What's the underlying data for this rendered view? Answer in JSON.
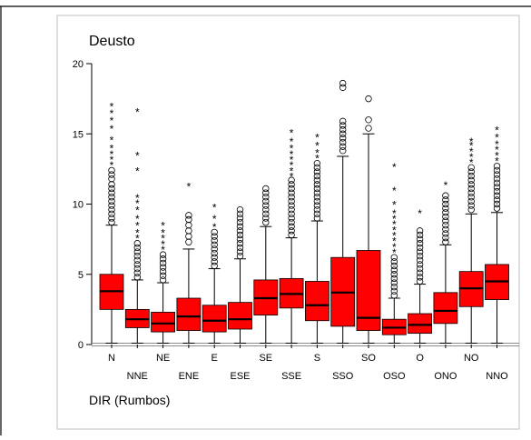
{
  "chart_data": {
    "type": "box",
    "title": "Deusto",
    "xlabel": "DIR (Rumbos)",
    "ylabel": "",
    "ylim": [
      0,
      20
    ],
    "yticks": [
      0,
      5,
      10,
      15,
      20
    ],
    "grid": false,
    "box_color": "#ff0000",
    "categories": [
      "N",
      "NNE",
      "NE",
      "ENE",
      "E",
      "ESE",
      "SE",
      "SSE",
      "S",
      "SSO",
      "SO",
      "OSO",
      "O",
      "ONO",
      "NO",
      "NNO"
    ],
    "boxes": [
      {
        "category": "N",
        "min": 0.1,
        "q1": 2.5,
        "median": 3.8,
        "q3": 5.0,
        "max": 8.5,
        "circles": [
          8.7,
          9.0,
          9.3,
          9.6,
          9.9,
          10.2,
          10.5,
          10.8,
          11.1,
          11.4,
          11.8,
          12.1,
          12.4
        ],
        "stars": [
          12.8,
          13.2,
          13.6,
          14.0,
          14.6,
          15.4,
          16.0,
          16.5,
          17.0
        ]
      },
      {
        "category": "NNE",
        "min": 0.1,
        "q1": 1.2,
        "median": 1.8,
        "q3": 2.5,
        "max": 4.6,
        "circles": [
          4.8,
          5.1,
          5.4,
          5.7,
          6.0,
          6.3,
          6.6,
          6.9,
          7.2
        ],
        "stars": [
          7.6,
          8.0,
          8.5,
          9.0,
          9.6,
          10.1,
          10.5,
          12.4,
          13.5,
          16.6
        ]
      },
      {
        "category": "NE",
        "min": 0.1,
        "q1": 0.9,
        "median": 1.5,
        "q3": 2.3,
        "max": 4.4,
        "circles": [
          4.6,
          4.9,
          5.2,
          5.5,
          5.8,
          6.1,
          6.4
        ],
        "stars": [
          6.8,
          7.2,
          7.6,
          8.0,
          8.5
        ]
      },
      {
        "category": "ENE",
        "min": 0.1,
        "q1": 1.0,
        "median": 2.0,
        "q3": 3.3,
        "max": 6.8,
        "circles": [
          7.3,
          7.7,
          8.1,
          8.5,
          8.9,
          9.2
        ],
        "stars": [
          11.3
        ]
      },
      {
        "category": "E",
        "min": 0.1,
        "q1": 0.9,
        "median": 1.7,
        "q3": 2.8,
        "max": 5.4,
        "circles": [
          5.6,
          5.9,
          6.2,
          6.5,
          6.8,
          7.1,
          7.4,
          7.7,
          8.0
        ],
        "stars": [
          8.4,
          9.0,
          9.8
        ]
      },
      {
        "category": "ESE",
        "min": 0.1,
        "q1": 1.1,
        "median": 1.8,
        "q3": 3.0,
        "max": 6.1,
        "circles": [
          6.3,
          6.6,
          6.9,
          7.2,
          7.5,
          7.8,
          8.1,
          8.4,
          8.7,
          9.0,
          9.3,
          9.6
        ],
        "stars": []
      },
      {
        "category": "SE",
        "min": 0.1,
        "q1": 2.1,
        "median": 3.3,
        "q3": 4.6,
        "max": 8.4,
        "circles": [
          8.7,
          9.0,
          9.3,
          9.6,
          9.9,
          10.2,
          10.5,
          10.8,
          11.1
        ],
        "stars": []
      },
      {
        "category": "SSE",
        "min": 0.1,
        "q1": 2.6,
        "median": 3.6,
        "q3": 4.7,
        "max": 7.6,
        "circles": [
          7.8,
          8.1,
          8.4,
          8.7,
          9.0,
          9.3,
          9.6,
          9.9,
          10.2,
          10.5,
          10.8,
          11.1,
          11.4,
          11.7
        ],
        "stars": [
          12.0,
          12.4,
          12.8,
          13.2,
          13.6,
          14.0,
          14.5,
          15.1
        ]
      },
      {
        "category": "S",
        "min": 0.1,
        "q1": 1.7,
        "median": 2.8,
        "q3": 4.5,
        "max": 8.8,
        "circles": [
          9.0,
          9.3,
          9.6,
          9.9,
          10.2,
          10.5,
          10.8,
          11.1,
          11.4,
          11.7,
          12.0,
          12.3,
          12.6,
          12.9
        ],
        "stars": [
          13.3,
          13.7,
          14.2,
          14.8
        ]
      },
      {
        "category": "SSO",
        "min": 0.1,
        "q1": 1.3,
        "median": 3.7,
        "q3": 6.2,
        "max": 13.4,
        "circles": [
          13.8,
          14.1,
          14.4,
          14.7,
          15.0,
          15.3,
          15.6,
          15.9,
          18.3,
          18.6
        ],
        "stars": []
      },
      {
        "category": "SO",
        "min": 0.1,
        "q1": 1.0,
        "median": 1.9,
        "q3": 6.7,
        "max": 15.0,
        "circles": [
          15.4,
          16.0,
          17.5
        ],
        "stars": []
      },
      {
        "category": "OSO",
        "min": 0.1,
        "q1": 0.7,
        "median": 1.2,
        "q3": 1.8,
        "max": 3.3,
        "circles": [
          3.5,
          3.8,
          4.1,
          4.4,
          4.7,
          5.0,
          5.3,
          5.6,
          5.9,
          6.2
        ],
        "stars": [
          6.6,
          7.0,
          7.4,
          7.8,
          8.2,
          8.6,
          9.0,
          9.4,
          10.0,
          11.0,
          12.7
        ]
      },
      {
        "category": "O",
        "min": 0.1,
        "q1": 0.8,
        "median": 1.4,
        "q3": 2.2,
        "max": 4.3,
        "circles": [
          4.5,
          4.8,
          5.1,
          5.4,
          5.7,
          6.0,
          6.3,
          6.6,
          6.9,
          7.2,
          7.5,
          7.8,
          8.1
        ],
        "stars": [
          9.4
        ]
      },
      {
        "category": "ONO",
        "min": 0.1,
        "q1": 1.5,
        "median": 2.4,
        "q3": 3.7,
        "max": 7.1,
        "circles": [
          7.3,
          7.6,
          7.9,
          8.2,
          8.5,
          8.8,
          9.1,
          9.4,
          9.7,
          10.0,
          10.3,
          10.6
        ],
        "stars": [
          11.4
        ]
      },
      {
        "category": "NO",
        "min": 0.1,
        "q1": 2.7,
        "median": 4.0,
        "q3": 5.2,
        "max": 9.3,
        "circles": [
          9.6,
          9.9,
          10.2,
          10.5,
          10.8,
          11.1,
          11.4,
          11.7,
          12.0,
          12.3,
          12.6
        ],
        "stars": [
          13.0,
          13.4,
          13.8,
          14.2,
          14.5
        ]
      },
      {
        "category": "NNO",
        "min": 0.1,
        "q1": 3.2,
        "median": 4.5,
        "q3": 5.7,
        "max": 9.4,
        "circles": [
          9.7,
          10.0,
          10.3,
          10.6,
          10.9,
          11.2,
          11.5,
          11.8,
          12.1,
          12.4,
          12.7
        ],
        "stars": [
          13.1,
          13.5,
          13.9,
          14.3,
          14.8,
          15.3
        ]
      }
    ]
  }
}
